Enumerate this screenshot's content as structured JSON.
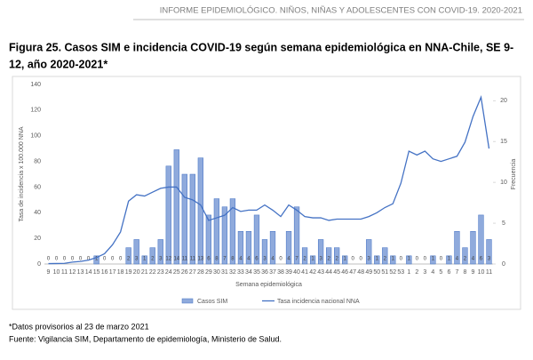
{
  "header": {
    "title": "INFORME EPIDEMIOLÓGICO. NIÑOS, NIÑAS Y ADOLESCENTES CON COVID-19. 2020-2021"
  },
  "figure": {
    "title_line1": "Figura 25. Casos  SIM e incidencia COVID-19 según semana epidemiológica en NNA-Chile, SE 9-",
    "title_line2": "12, año 2020-2021*"
  },
  "chart_data": {
    "type": "bar-line",
    "ylabel": "Tasa de incidencia x 100.000 NNA",
    "y2label": "Frecuencia",
    "xlabel": "Semana epidemiológica",
    "categories": [
      "9",
      "10",
      "11",
      "12",
      "13",
      "14",
      "15",
      "16",
      "17",
      "18",
      "19",
      "20",
      "21",
      "22",
      "23",
      "24",
      "25",
      "26",
      "27",
      "28",
      "29",
      "30",
      "31",
      "32",
      "33",
      "34",
      "35",
      "36",
      "37",
      "38",
      "39",
      "40",
      "41",
      "42",
      "43",
      "44",
      "45",
      "46",
      "47",
      "48",
      "49",
      "50",
      "51",
      "52",
      "53",
      "1",
      "2",
      "3",
      "4",
      "5",
      "6",
      "7",
      "8",
      "9",
      "10",
      "11"
    ],
    "ylim": [
      0,
      140
    ],
    "yticks": [
      0,
      20,
      40,
      60,
      80,
      100,
      120,
      140
    ],
    "y2lim": [
      0,
      22
    ],
    "y2ticks": [
      0,
      5,
      10,
      15,
      20
    ],
    "series": [
      {
        "name": "Casos SIM",
        "color": "#8faadc",
        "axis": "y2",
        "type": "bar",
        "values": [
          0,
          0,
          0,
          0,
          0,
          0,
          1,
          0,
          0,
          0,
          2,
          3,
          1,
          2,
          3,
          12,
          14,
          11,
          11,
          13,
          6,
          8,
          7,
          8,
          4,
          4,
          6,
          3,
          4,
          0,
          4,
          7,
          2,
          1,
          3,
          2,
          2,
          1,
          0,
          0,
          3,
          1,
          2,
          1,
          0,
          1,
          0,
          0,
          1,
          0,
          1,
          4,
          2,
          4,
          6,
          3
        ]
      },
      {
        "name": "Tasa incidencia nacional NNA",
        "color": "#4472c4",
        "axis": "y",
        "type": "line",
        "values": [
          0.3,
          0.4,
          0.5,
          1.5,
          2,
          3,
          5,
          8,
          15,
          25,
          49,
          54,
          53,
          56,
          59,
          60,
          60,
          52,
          50,
          46,
          34,
          36,
          38,
          44,
          41,
          42,
          42,
          46,
          42,
          37,
          46,
          42,
          37,
          36,
          36,
          34,
          35,
          35,
          35,
          35,
          37,
          40,
          44,
          47,
          63,
          88,
          85,
          88,
          82,
          80,
          82,
          84,
          95,
          115,
          130,
          90
        ]
      }
    ]
  },
  "footnotes": [
    "*Datos provisorios al 23 de marzo 2021",
    "Fuente: Vigilancia SIM, Departamento de epidemiología, Ministerio de Salud."
  ]
}
